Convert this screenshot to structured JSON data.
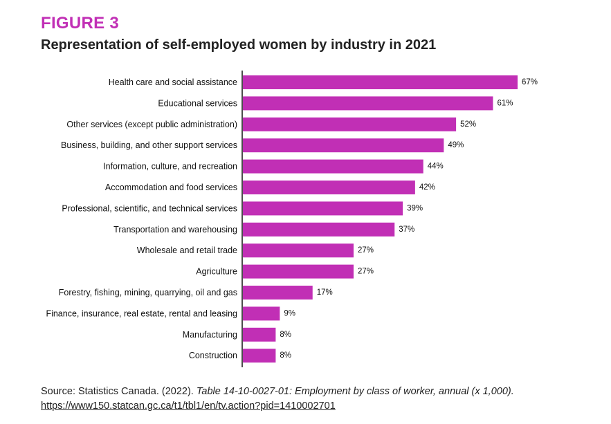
{
  "figure_label": "FIGURE 3",
  "chart_data": {
    "type": "bar",
    "orientation": "horizontal",
    "title": "Representation of self-employed women by industry in 2021",
    "categories": [
      "Health care and social assistance",
      "Educational services",
      "Other services (except public administration)",
      "Business, building, and other support services",
      "Information, culture, and recreation",
      "Accommodation and food services",
      "Professional, scientific, and technical services",
      "Transportation and warehousing",
      "Wholesale and retail trade",
      "Agriculture",
      "Forestry, fishing, mining, quarrying, oil and gas",
      "Finance, insurance, real estate, rental and leasing",
      "Manufacturing",
      "Construction"
    ],
    "values": [
      67,
      61,
      52,
      49,
      44,
      42,
      39,
      37,
      27,
      27,
      17,
      9,
      8,
      8
    ],
    "data_labels": [
      "67%",
      "61%",
      "52%",
      "49%",
      "44%",
      "42%",
      "39%",
      "37%",
      "27%",
      "27%",
      "17%",
      "9%",
      "8%",
      "8%"
    ],
    "unit": "%",
    "xlim": [
      0,
      67
    ],
    "bar_color": "#c12fb5",
    "grid": false,
    "legend": "none"
  },
  "source": {
    "prefix": "Source: Statistics Canada. (2022). ",
    "title": "Table 14-10-0027-01: Employment by class of worker, annual (x 1,000).",
    "url": "https://www150.statcan.gc.ca/t1/tbl1/en/tv.action?pid=1410002701"
  },
  "colors": {
    "accent": "#c12fb5",
    "text": "#222222"
  }
}
